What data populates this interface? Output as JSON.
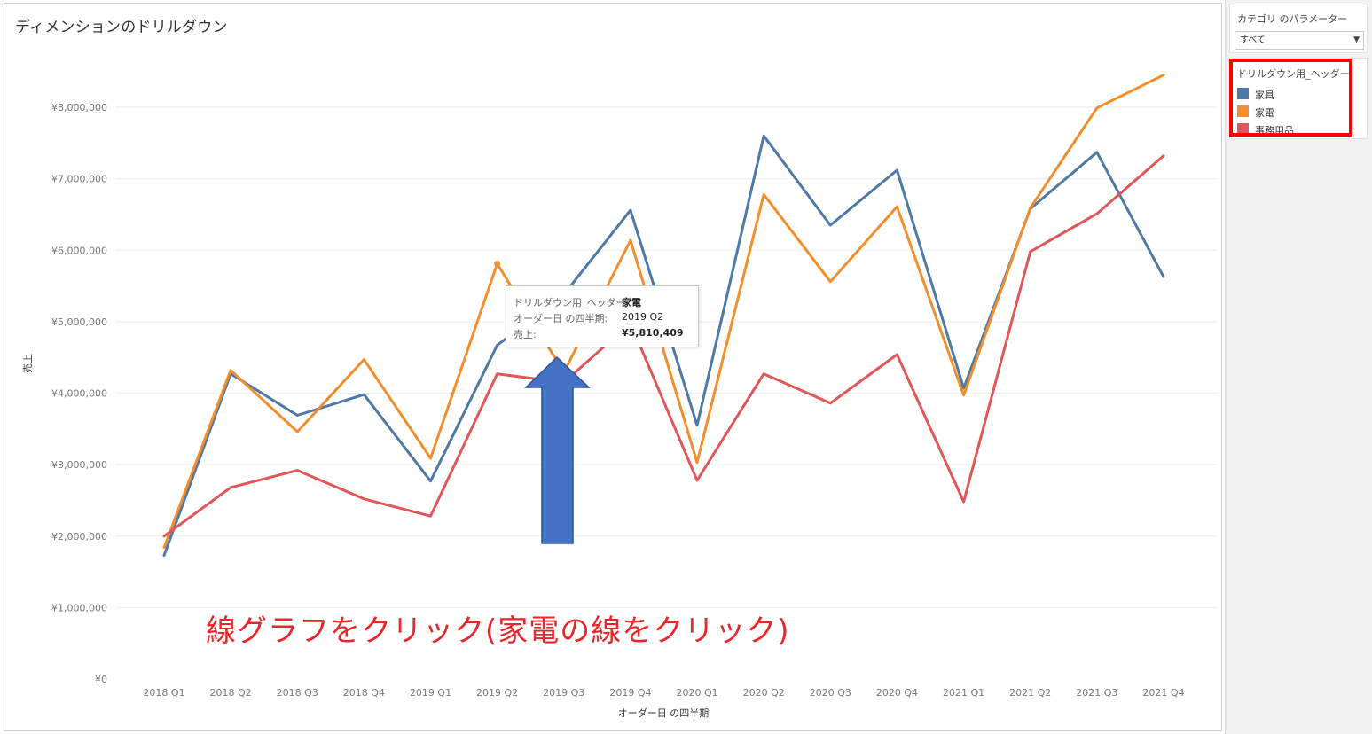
{
  "sheet": {
    "title": "ディメンションのドリルダウン"
  },
  "parameter": {
    "title": "カテゴリ のパラメーター",
    "value": "すべて"
  },
  "legend": {
    "title": "ドリルダウン用_ヘッダー",
    "items": [
      {
        "label": "家具",
        "color": "#4e79a7"
      },
      {
        "label": "家電",
        "color": "#f28e2b"
      },
      {
        "label": "事務用品",
        "color": "#e15759"
      }
    ]
  },
  "tooltip": {
    "rows": [
      {
        "key": "ドリルダウン用_ヘッダー:",
        "value": "家電"
      },
      {
        "key": "オーダー日 の四半期:",
        "value": "2019 Q2"
      },
      {
        "key": "売上:",
        "value": "¥5,810,409"
      }
    ]
  },
  "annotation": "線グラフをクリック(家電の線をクリック)",
  "chart_data": {
    "type": "line",
    "xlabel": "オーダー日 の四半期",
    "ylabel": "売上",
    "ylim": [
      0,
      9000000
    ],
    "yticks": [
      {
        "value": 0,
        "label": "¥0"
      },
      {
        "value": 1000000,
        "label": "¥1,000,000"
      },
      {
        "value": 2000000,
        "label": "¥2,000,000"
      },
      {
        "value": 3000000,
        "label": "¥3,000,000"
      },
      {
        "value": 4000000,
        "label": "¥4,000,000"
      },
      {
        "value": 5000000,
        "label": "¥5,000,000"
      },
      {
        "value": 6000000,
        "label": "¥6,000,000"
      },
      {
        "value": 7000000,
        "label": "¥7,000,000"
      },
      {
        "value": 8000000,
        "label": "¥8,000,000"
      }
    ],
    "categories": [
      "2018 Q1",
      "2018 Q2",
      "2018 Q3",
      "2018 Q4",
      "2019 Q1",
      "2019 Q2",
      "2019 Q3",
      "2019 Q4",
      "2020 Q1",
      "2020 Q2",
      "2020 Q3",
      "2020 Q4",
      "2021 Q1",
      "2021 Q2",
      "2021 Q3",
      "2021 Q4"
    ],
    "grid": "horizontal",
    "legend": "right",
    "series": [
      {
        "name": "家具",
        "color": "#4e79a7",
        "values": [
          1730000,
          4270000,
          3690000,
          3980000,
          2770000,
          4670000,
          5380000,
          6560000,
          3550000,
          7600000,
          6350000,
          7120000,
          4070000,
          6580000,
          7370000,
          5630000
        ]
      },
      {
        "name": "家電",
        "color": "#f28e2b",
        "values": [
          1840000,
          4320000,
          3460000,
          4470000,
          3090000,
          5810409,
          4290000,
          6140000,
          3030000,
          6780000,
          5560000,
          6610000,
          3970000,
          6590000,
          7990000,
          8450000
        ]
      },
      {
        "name": "事務用品",
        "color": "#e15759",
        "values": [
          2000000,
          2680000,
          2920000,
          2520000,
          2280000,
          4270000,
          4150000,
          4980000,
          2780000,
          4270000,
          3860000,
          4540000,
          2480000,
          5980000,
          6510000,
          7320000
        ]
      }
    ],
    "selected_point": {
      "series": "家電",
      "category": "2019 Q2",
      "value": 5810409
    }
  },
  "arrow": {
    "color": "#4472c4",
    "border": "#2f528f"
  }
}
